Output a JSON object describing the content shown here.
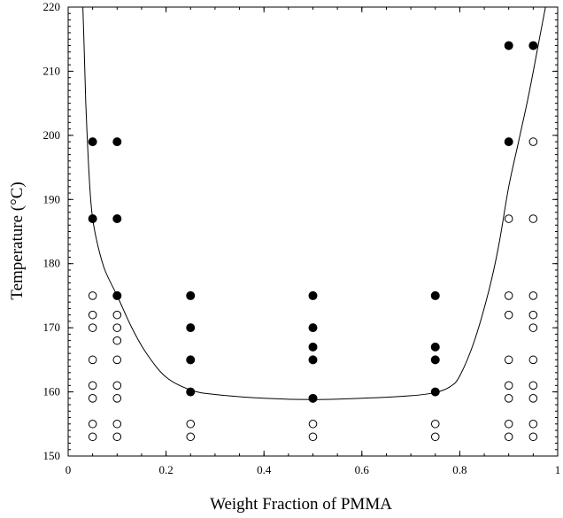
{
  "chart_data": {
    "type": "scatter",
    "xlabel": "Weight Fraction of PMMA",
    "ylabel": "Temperature (°C)",
    "xlim": [
      0,
      1
    ],
    "ylim": [
      150,
      220
    ],
    "xticks": [
      0,
      0.2,
      0.4,
      0.6,
      0.8,
      1
    ],
    "xtick_labels": [
      "0",
      "0.2",
      "0.4",
      "0.6",
      "0.8",
      "1"
    ],
    "yticks": [
      150,
      160,
      170,
      180,
      190,
      200,
      210,
      220
    ],
    "ytick_labels": [
      "150",
      "160",
      "170",
      "180",
      "190",
      "200",
      "210",
      "220"
    ],
    "grid": false,
    "legend": "none",
    "series": [
      {
        "marker": "filled-circle",
        "points": [
          [
            0.05,
            199
          ],
          [
            0.05,
            187
          ],
          [
            0.1,
            199
          ],
          [
            0.1,
            187
          ],
          [
            0.1,
            175
          ],
          [
            0.25,
            175
          ],
          [
            0.25,
            170
          ],
          [
            0.25,
            165
          ],
          [
            0.25,
            160
          ],
          [
            0.5,
            175
          ],
          [
            0.5,
            170
          ],
          [
            0.5,
            167
          ],
          [
            0.5,
            165
          ],
          [
            0.5,
            159
          ],
          [
            0.75,
            175
          ],
          [
            0.75,
            167
          ],
          [
            0.75,
            165
          ],
          [
            0.75,
            160
          ],
          [
            0.9,
            214
          ],
          [
            0.9,
            199
          ],
          [
            0.95,
            214
          ]
        ]
      },
      {
        "marker": "open-circle",
        "points": [
          [
            0.05,
            175
          ],
          [
            0.05,
            172
          ],
          [
            0.05,
            170
          ],
          [
            0.05,
            165
          ],
          [
            0.05,
            161
          ],
          [
            0.05,
            159
          ],
          [
            0.05,
            155
          ],
          [
            0.05,
            153
          ],
          [
            0.1,
            172
          ],
          [
            0.1,
            170
          ],
          [
            0.1,
            168
          ],
          [
            0.1,
            165
          ],
          [
            0.1,
            161
          ],
          [
            0.1,
            159
          ],
          [
            0.1,
            155
          ],
          [
            0.1,
            153
          ],
          [
            0.25,
            155
          ],
          [
            0.25,
            153
          ],
          [
            0.5,
            155
          ],
          [
            0.5,
            153
          ],
          [
            0.75,
            155
          ],
          [
            0.75,
            153
          ],
          [
            0.9,
            187
          ],
          [
            0.9,
            175
          ],
          [
            0.9,
            172
          ],
          [
            0.9,
            165
          ],
          [
            0.9,
            161
          ],
          [
            0.9,
            159
          ],
          [
            0.9,
            155
          ],
          [
            0.9,
            153
          ],
          [
            0.95,
            199
          ],
          [
            0.95,
            187
          ],
          [
            0.95,
            175
          ],
          [
            0.95,
            172
          ],
          [
            0.95,
            170
          ],
          [
            0.95,
            165
          ],
          [
            0.95,
            161
          ],
          [
            0.95,
            159
          ],
          [
            0.95,
            155
          ],
          [
            0.95,
            153
          ]
        ]
      }
    ],
    "curve": {
      "type": "line",
      "points": [
        [
          0.03,
          220
        ],
        [
          0.033,
          213
        ],
        [
          0.036,
          205
        ],
        [
          0.04,
          198
        ],
        [
          0.045,
          191
        ],
        [
          0.05,
          187
        ],
        [
          0.06,
          183
        ],
        [
          0.075,
          179
        ],
        [
          0.1,
          175
        ],
        [
          0.13,
          170
        ],
        [
          0.16,
          166
        ],
        [
          0.2,
          162.3
        ],
        [
          0.25,
          160.3
        ],
        [
          0.3,
          159.6
        ],
        [
          0.4,
          159.0
        ],
        [
          0.5,
          158.8
        ],
        [
          0.6,
          159.0
        ],
        [
          0.7,
          159.4
        ],
        [
          0.75,
          159.9
        ],
        [
          0.78,
          160.8
        ],
        [
          0.8,
          162.5
        ],
        [
          0.83,
          168
        ],
        [
          0.86,
          176
        ],
        [
          0.88,
          183
        ],
        [
          0.9,
          192
        ],
        [
          0.92,
          199
        ],
        [
          0.94,
          206
        ],
        [
          0.96,
          214
        ],
        [
          0.975,
          220
        ]
      ]
    }
  }
}
